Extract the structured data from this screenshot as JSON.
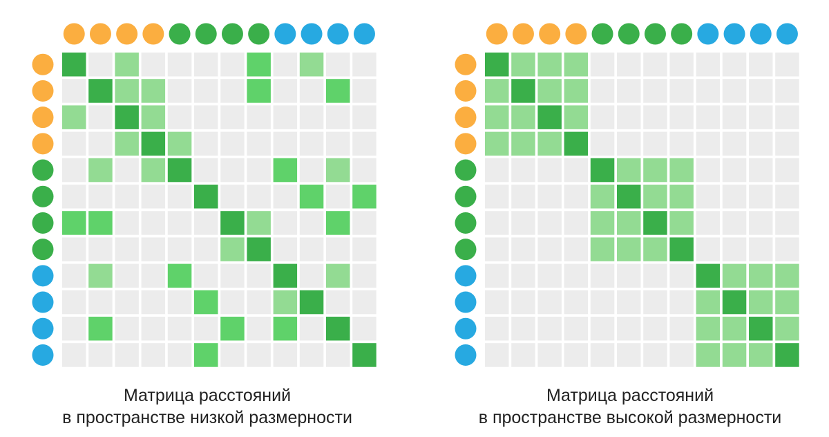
{
  "colors": {
    "orange": "#FBAE40",
    "green": "#3AAF4A",
    "blue": "#27A9E1",
    "cell_empty": "#ECECEC",
    "cell_low": "#93DB93",
    "cell_mid": "#5FD26A",
    "cell_high": "#3AAF4A"
  },
  "point_groups": [
    "orange",
    "orange",
    "orange",
    "orange",
    "green",
    "green",
    "green",
    "green",
    "blue",
    "blue",
    "blue",
    "blue"
  ],
  "matrices": [
    {
      "caption_line1": "Матрица расстояний",
      "caption_line2": "в пространстве низкой размерности",
      "cells": [
        [
          3,
          0,
          1,
          0,
          0,
          0,
          0,
          2,
          0,
          1,
          0,
          0
        ],
        [
          0,
          3,
          1,
          1,
          0,
          0,
          0,
          2,
          0,
          0,
          2,
          0
        ],
        [
          1,
          0,
          3,
          1,
          0,
          0,
          0,
          0,
          0,
          0,
          0,
          0
        ],
        [
          0,
          0,
          1,
          3,
          1,
          0,
          0,
          0,
          0,
          0,
          0,
          0
        ],
        [
          0,
          1,
          0,
          1,
          3,
          0,
          0,
          0,
          2,
          0,
          1,
          0
        ],
        [
          0,
          0,
          0,
          0,
          0,
          3,
          0,
          0,
          0,
          2,
          0,
          2
        ],
        [
          2,
          2,
          0,
          0,
          0,
          0,
          3,
          1,
          0,
          0,
          2,
          0
        ],
        [
          0,
          0,
          0,
          0,
          0,
          0,
          1,
          3,
          0,
          0,
          0,
          0
        ],
        [
          0,
          1,
          0,
          0,
          2,
          0,
          0,
          0,
          3,
          0,
          1,
          0
        ],
        [
          0,
          0,
          0,
          0,
          0,
          2,
          0,
          0,
          1,
          3,
          0,
          0
        ],
        [
          0,
          2,
          0,
          0,
          0,
          0,
          2,
          0,
          2,
          0,
          3,
          0
        ],
        [
          0,
          0,
          0,
          0,
          0,
          2,
          0,
          0,
          0,
          0,
          0,
          3
        ]
      ]
    },
    {
      "caption_line1": "Матрица расстояний",
      "caption_line2": "в пространстве высокой размерности",
      "cells": [
        [
          3,
          1,
          1,
          1,
          0,
          0,
          0,
          0,
          0,
          0,
          0,
          0
        ],
        [
          1,
          3,
          1,
          1,
          0,
          0,
          0,
          0,
          0,
          0,
          0,
          0
        ],
        [
          1,
          1,
          3,
          1,
          0,
          0,
          0,
          0,
          0,
          0,
          0,
          0
        ],
        [
          1,
          1,
          1,
          3,
          0,
          0,
          0,
          0,
          0,
          0,
          0,
          0
        ],
        [
          0,
          0,
          0,
          0,
          3,
          1,
          1,
          1,
          0,
          0,
          0,
          0
        ],
        [
          0,
          0,
          0,
          0,
          1,
          3,
          1,
          1,
          0,
          0,
          0,
          0
        ],
        [
          0,
          0,
          0,
          0,
          1,
          1,
          3,
          1,
          0,
          0,
          0,
          0
        ],
        [
          0,
          0,
          0,
          0,
          1,
          1,
          1,
          3,
          0,
          0,
          0,
          0
        ],
        [
          0,
          0,
          0,
          0,
          0,
          0,
          0,
          0,
          3,
          1,
          1,
          1
        ],
        [
          0,
          0,
          0,
          0,
          0,
          0,
          0,
          0,
          1,
          3,
          1,
          1
        ],
        [
          0,
          0,
          0,
          0,
          0,
          0,
          0,
          0,
          1,
          1,
          3,
          1
        ],
        [
          0,
          0,
          0,
          0,
          0,
          0,
          0,
          0,
          1,
          1,
          1,
          3
        ]
      ]
    }
  ]
}
